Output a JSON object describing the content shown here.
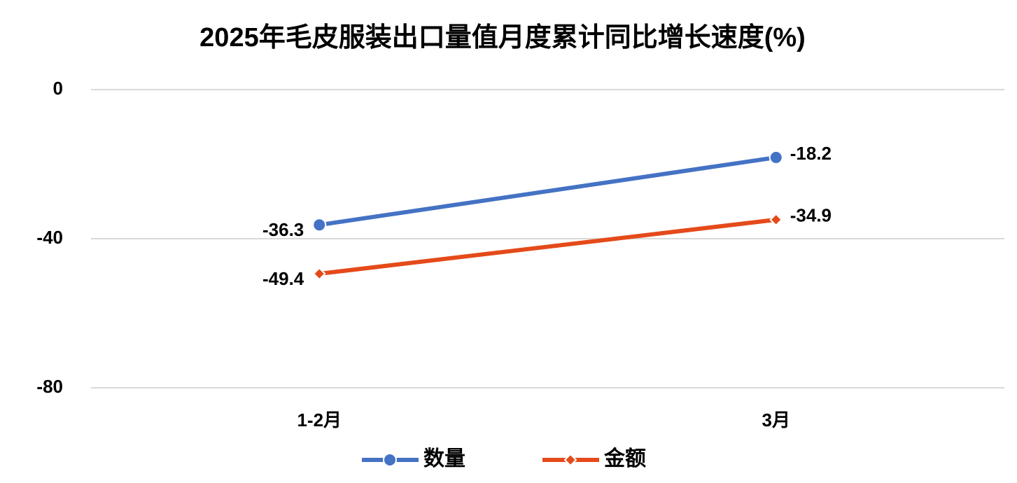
{
  "chart_data": {
    "type": "line",
    "title": "2025年毛皮服装出口量值月度累计同比增长速度(%)",
    "categories": [
      "1-2月",
      "3月"
    ],
    "series": [
      {
        "name": "数量",
        "color": "#4472c4",
        "marker": "circle",
        "values": [
          -36.3,
          -18.2
        ]
      },
      {
        "name": "金额",
        "color": "#e54a1a",
        "marker": "diamond",
        "values": [
          -49.4,
          -34.9
        ]
      }
    ],
    "ylim": [
      -80,
      0
    ],
    "yticks": [
      -80,
      -40,
      0
    ],
    "grid": true,
    "legend": "bottom"
  }
}
